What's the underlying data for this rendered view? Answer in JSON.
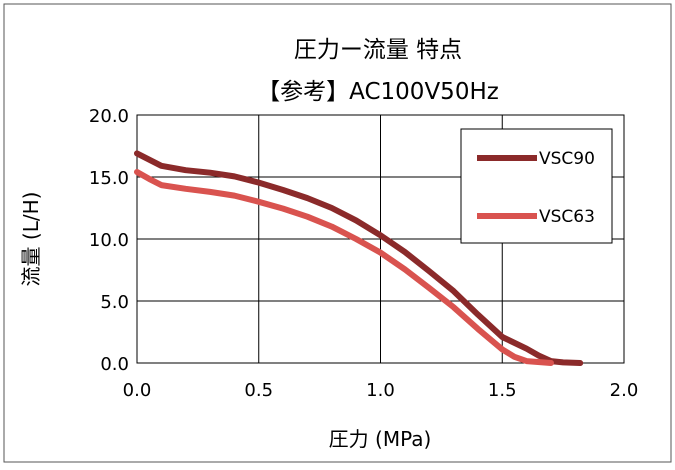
{
  "chart_data": {
    "type": "line",
    "title": "圧力ー流量  特点",
    "subtitle": "【参考】AC100V50Hz",
    "xlabel": "圧力 (MPa)",
    "ylabel": "流量 (L/H)",
    "xlim": [
      0,
      2.0
    ],
    "ylim": [
      0,
      20.0
    ],
    "x_ticks": [
      "0.0",
      "0.5",
      "1.0",
      "1.5",
      "2.0"
    ],
    "y_ticks": [
      "0.0",
      "5.0",
      "10.0",
      "15.0",
      "20.0"
    ],
    "grid": true,
    "legend_position": "top-right",
    "series": [
      {
        "name": "VSC90",
        "color": "#8b2a2a",
        "points": [
          [
            0.0,
            16.9
          ],
          [
            0.1,
            15.9
          ],
          [
            0.2,
            15.55
          ],
          [
            0.3,
            15.35
          ],
          [
            0.4,
            15.05
          ],
          [
            0.5,
            14.55
          ],
          [
            0.6,
            13.95
          ],
          [
            0.7,
            13.3
          ],
          [
            0.8,
            12.5
          ],
          [
            0.9,
            11.5
          ],
          [
            1.0,
            10.3
          ],
          [
            1.1,
            8.95
          ],
          [
            1.2,
            7.4
          ],
          [
            1.3,
            5.8
          ],
          [
            1.4,
            3.9
          ],
          [
            1.5,
            2.1
          ],
          [
            1.6,
            1.15
          ],
          [
            1.65,
            0.6
          ],
          [
            1.7,
            0.15
          ],
          [
            1.75,
            0.05
          ],
          [
            1.82,
            0.0
          ]
        ]
      },
      {
        "name": "VSC63",
        "color": "#d9534f",
        "points": [
          [
            0.0,
            15.4
          ],
          [
            0.05,
            14.85
          ],
          [
            0.1,
            14.35
          ],
          [
            0.2,
            14.05
          ],
          [
            0.3,
            13.8
          ],
          [
            0.4,
            13.5
          ],
          [
            0.5,
            13.0
          ],
          [
            0.6,
            12.45
          ],
          [
            0.7,
            11.8
          ],
          [
            0.8,
            11.0
          ],
          [
            0.9,
            10.0
          ],
          [
            1.0,
            8.9
          ],
          [
            1.1,
            7.55
          ],
          [
            1.2,
            6.05
          ],
          [
            1.3,
            4.5
          ],
          [
            1.4,
            2.75
          ],
          [
            1.5,
            1.1
          ],
          [
            1.55,
            0.5
          ],
          [
            1.6,
            0.15
          ],
          [
            1.7,
            0.0
          ]
        ]
      }
    ]
  }
}
